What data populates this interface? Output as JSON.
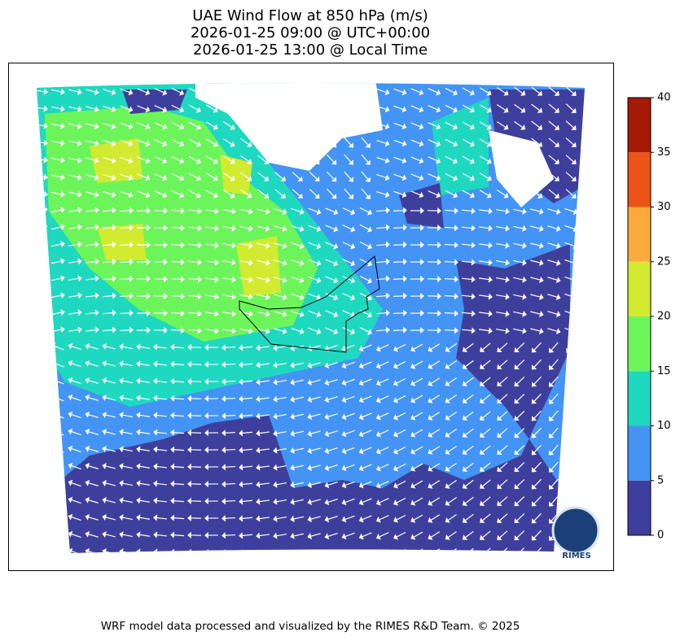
{
  "title": [
    "UAE Wind Flow at 850 hPa (m/s)",
    "2026-01-25 09:00 @ UTC+00:00",
    "2026-01-25 13:00 @ Local Time"
  ],
  "colorbar": {
    "ticks": [
      0,
      5,
      10,
      15,
      20,
      25,
      30,
      35,
      40
    ],
    "colors": [
      "#3e3f9c",
      "#4394f5",
      "#1fd8c0",
      "#6cf55a",
      "#d2ea30",
      "#fbab3b",
      "#ec5318",
      "#a51907"
    ]
  },
  "logo": "RIMES",
  "footer": "WRF model data processed and visualized by the RIMES R&D Team. © 2025"
}
